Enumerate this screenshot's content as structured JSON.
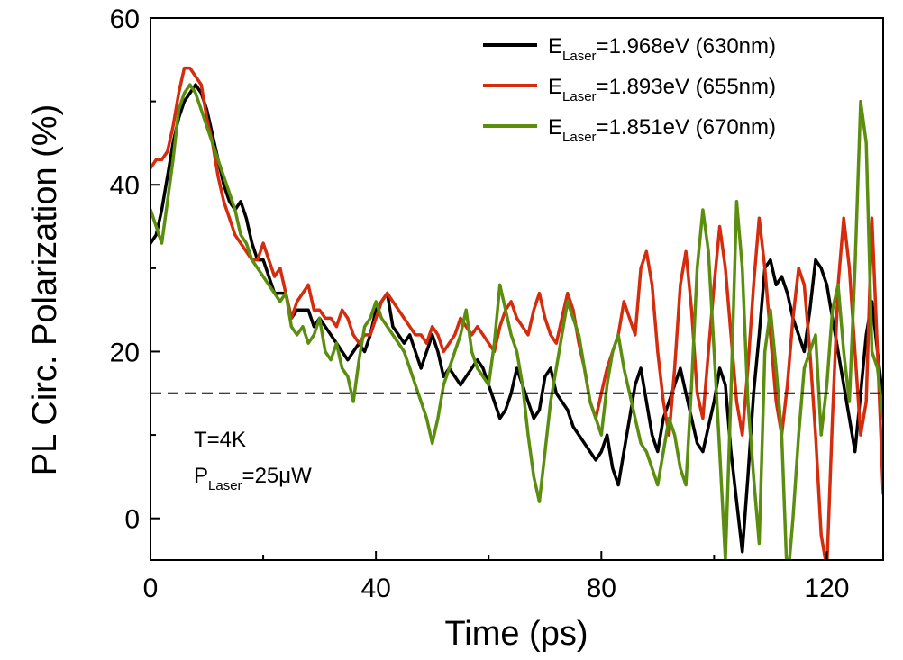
{
  "chart_data": {
    "type": "line",
    "title": "",
    "xlabel": "Time (ps)",
    "ylabel": "PL Circ. Polarization (%)",
    "xlim": [
      0,
      130
    ],
    "ylim": [
      -5,
      60
    ],
    "xticks": [
      0,
      40,
      80,
      120
    ],
    "xtick_labels": [
      "0",
      "40",
      "80",
      "120"
    ],
    "xminor": [
      20,
      60,
      100
    ],
    "yticks": [
      0,
      20,
      40,
      60
    ],
    "ytick_labels": [
      "0",
      "20",
      "40",
      "60"
    ],
    "yminor": [
      10,
      30,
      50
    ],
    "legend_position": "top-right",
    "reference_line": {
      "y": 15,
      "style": "dashed",
      "color": "#000000"
    },
    "annotation": {
      "line1": "T=4K",
      "line2_main": "P",
      "line2_sub": "Laser",
      "line2_rest": "=25μW"
    },
    "series": [
      {
        "name": "E_Laser=1.968eV (630nm)",
        "legend_main": "E",
        "legend_sub": "Laser",
        "legend_rest": "=1.968eV (630nm)",
        "color": "#000000",
        "x": [
          0,
          1,
          2,
          3,
          4,
          5,
          6,
          7,
          8,
          9,
          10,
          11,
          12,
          13,
          14,
          15,
          16,
          17,
          18,
          19,
          20,
          21,
          22,
          23,
          24,
          25,
          26,
          27,
          28,
          29,
          30,
          31,
          32,
          33,
          34,
          35,
          36,
          37,
          38,
          39,
          40,
          41,
          42,
          43,
          44,
          45,
          46,
          47,
          48,
          49,
          50,
          51,
          52,
          53,
          54,
          55,
          56,
          57,
          58,
          59,
          60,
          61,
          62,
          63,
          64,
          65,
          66,
          67,
          68,
          69,
          70,
          71,
          72,
          73,
          74,
          75,
          76,
          77,
          78,
          79,
          80,
          81,
          82,
          83,
          84,
          85,
          86,
          87,
          88,
          89,
          90,
          91,
          92,
          93,
          94,
          95,
          96,
          97,
          98,
          99,
          100,
          101,
          102,
          103,
          104,
          105,
          106,
          107,
          108,
          109,
          110,
          111,
          112,
          113,
          114,
          115,
          116,
          117,
          118,
          119,
          120,
          121,
          122,
          123,
          124,
          125,
          126,
          127,
          128,
          129,
          130
        ],
        "values": [
          33,
          34,
          37,
          41,
          45,
          48,
          50,
          51,
          52,
          51,
          49,
          46,
          43,
          40,
          38,
          37,
          38,
          36,
          33,
          31,
          31,
          29,
          27,
          27,
          27,
          24,
          25,
          25,
          25,
          23,
          24,
          23,
          22,
          21,
          20,
          19,
          20,
          21,
          20,
          22,
          25,
          26,
          27,
          23,
          22,
          21,
          22,
          20,
          18,
          20,
          22,
          20,
          17,
          18,
          17,
          16,
          17,
          18,
          19,
          18,
          16,
          14,
          12,
          13,
          15,
          18,
          16,
          14,
          12,
          13,
          17,
          18,
          15,
          14,
          13,
          11,
          10,
          9,
          8,
          7,
          8,
          10,
          6,
          4,
          8,
          12,
          16,
          18,
          14,
          10,
          8,
          12,
          14,
          16,
          18,
          15,
          12,
          9,
          8,
          11,
          14,
          18,
          16,
          8,
          2,
          -4,
          5,
          15,
          22,
          30,
          31,
          28,
          29,
          27,
          24,
          22,
          20,
          25,
          31,
          30,
          28,
          24,
          20,
          16,
          12,
          8,
          15,
          22,
          26,
          20,
          14
        ]
      },
      {
        "name": "E_Laser=1.893eV (655nm)",
        "legend_main": "E",
        "legend_sub": "Laser",
        "legend_rest": "=1.893eV (655nm)",
        "color": "#d42c0c",
        "x": [
          0,
          1,
          2,
          3,
          4,
          5,
          6,
          7,
          8,
          9,
          10,
          11,
          12,
          13,
          14,
          15,
          16,
          17,
          18,
          19,
          20,
          21,
          22,
          23,
          24,
          25,
          26,
          27,
          28,
          29,
          30,
          31,
          32,
          33,
          34,
          35,
          36,
          37,
          38,
          39,
          40,
          41,
          42,
          43,
          44,
          45,
          46,
          47,
          48,
          49,
          50,
          51,
          52,
          53,
          54,
          55,
          56,
          57,
          58,
          59,
          60,
          61,
          62,
          63,
          64,
          65,
          66,
          67,
          68,
          69,
          70,
          71,
          72,
          73,
          74,
          75,
          76,
          77,
          78,
          79,
          80,
          81,
          82,
          83,
          84,
          85,
          86,
          87,
          88,
          89,
          90,
          91,
          92,
          93,
          94,
          95,
          96,
          97,
          98,
          99,
          100,
          101,
          102,
          103,
          104,
          105,
          106,
          107,
          108,
          109,
          110,
          111,
          112,
          113,
          114,
          115,
          116,
          117,
          118,
          119,
          120,
          121,
          122,
          123,
          124,
          125,
          126,
          127,
          128,
          129,
          130
        ],
        "values": [
          42,
          43,
          43,
          44,
          47,
          51,
          54,
          54,
          53,
          52,
          48,
          45,
          41,
          38,
          36,
          34,
          33,
          32,
          31,
          31,
          33,
          31,
          29,
          30,
          27,
          24,
          26,
          27,
          28,
          25,
          25,
          24,
          24,
          23,
          25,
          24,
          22,
          21,
          22,
          22,
          24,
          26,
          27,
          26,
          25,
          24,
          23,
          22,
          22,
          21,
          23,
          22,
          20,
          21,
          22,
          24,
          23,
          22,
          23,
          22,
          21,
          20,
          23,
          25,
          26,
          24,
          23,
          22,
          25,
          27,
          24,
          22,
          21,
          24,
          27,
          25,
          21,
          18,
          14,
          12,
          15,
          18,
          20,
          22,
          26,
          24,
          22,
          30,
          32,
          28,
          20,
          14,
          10,
          18,
          28,
          32,
          25,
          15,
          12,
          20,
          28,
          35,
          30,
          22,
          14,
          10,
          18,
          28,
          36,
          30,
          22,
          14,
          10,
          16,
          24,
          30,
          28,
          20,
          10,
          -2,
          -6,
          12,
          28,
          36,
          30,
          20,
          10,
          14,
          36,
          20,
          3
        ]
      },
      {
        "name": "E_Laser=1.851eV (670nm)",
        "legend_main": "E",
        "legend_sub": "Laser",
        "legend_rest": "=1.851eV (670nm)",
        "color": "#5b8e0f",
        "x": [
          0,
          1,
          2,
          3,
          4,
          5,
          6,
          7,
          8,
          9,
          10,
          11,
          12,
          13,
          14,
          15,
          16,
          17,
          18,
          19,
          20,
          21,
          22,
          23,
          24,
          25,
          26,
          27,
          28,
          29,
          30,
          31,
          32,
          33,
          34,
          35,
          36,
          37,
          38,
          39,
          40,
          41,
          42,
          43,
          44,
          45,
          46,
          47,
          48,
          49,
          50,
          51,
          52,
          53,
          54,
          55,
          56,
          57,
          58,
          59,
          60,
          61,
          62,
          63,
          64,
          65,
          66,
          67,
          68,
          69,
          70,
          71,
          72,
          73,
          74,
          75,
          76,
          77,
          78,
          79,
          80,
          81,
          82,
          83,
          84,
          85,
          86,
          87,
          88,
          89,
          90,
          91,
          92,
          93,
          94,
          95,
          96,
          97,
          98,
          99,
          100,
          101,
          102,
          103,
          104,
          105,
          106,
          107,
          108,
          109,
          110,
          111,
          112,
          113,
          114,
          115,
          116,
          117,
          118,
          119,
          120,
          121,
          122,
          123,
          124,
          125,
          126,
          127,
          128,
          129,
          130
        ],
        "values": [
          37,
          35,
          33,
          38,
          43,
          49,
          51,
          52,
          51,
          49,
          47,
          45,
          43,
          41,
          39,
          37,
          34,
          33,
          31,
          30,
          29,
          28,
          27,
          26,
          27,
          23,
          22,
          23,
          21,
          22,
          24,
          20,
          19,
          21,
          18,
          17,
          14,
          19,
          23,
          24,
          26,
          24,
          23,
          22,
          21,
          20,
          18,
          16,
          14,
          12,
          9,
          12,
          16,
          18,
          20,
          22,
          25,
          20,
          18,
          17,
          16,
          21,
          28,
          25,
          22,
          20,
          16,
          10,
          5,
          2,
          8,
          14,
          18,
          22,
          26,
          24,
          22,
          18,
          14,
          12,
          10,
          16,
          20,
          22,
          18,
          15,
          12,
          9,
          8,
          6,
          4,
          8,
          12,
          10,
          6,
          4,
          16,
          30,
          37,
          32,
          20,
          8,
          -5,
          15,
          38,
          30,
          14,
          5,
          -3,
          20,
          25,
          18,
          10,
          -8,
          0,
          10,
          18,
          20,
          22,
          10,
          16,
          25,
          28,
          20,
          14,
          30,
          50,
          45,
          20,
          18,
          12
        ]
      }
    ]
  }
}
